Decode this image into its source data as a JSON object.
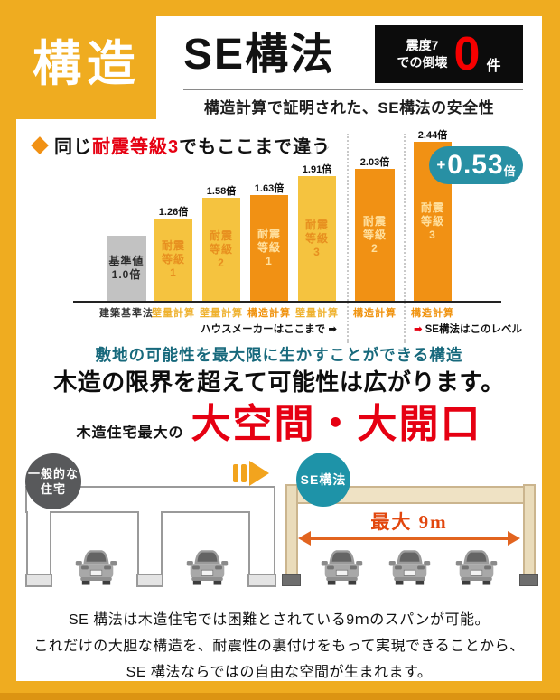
{
  "badge": {
    "label": "構造"
  },
  "header": {
    "title": "SE構法",
    "stat": {
      "line1": "震度7",
      "line2": "での倒壊",
      "number": "0",
      "unit": "件"
    },
    "subtitle": "構造計算で証明された、SE構法の安全性"
  },
  "chart": {
    "heading": {
      "pre": "同じ",
      "red": "耐震等級3",
      "post": "でもここまで違う"
    },
    "sparkle": "＼｜／",
    "pill": {
      "plus": "+",
      "number": "0.53",
      "unit": "倍"
    },
    "annotations": {
      "left": "ハウスメーカーはここまで ➡",
      "right_arrow": "➡",
      "right": "SE構法はこのレベル"
    }
  },
  "chart_data": {
    "type": "bar",
    "title": "同じ耐震等級3でもここまで違う",
    "categories": [
      "建築基準法",
      "壁量計算",
      "壁量計算",
      "構造計算",
      "壁量計算",
      "構造計算",
      "構造計算"
    ],
    "values": [
      1.0,
      1.26,
      1.58,
      1.63,
      1.91,
      2.03,
      2.44
    ],
    "ylim": [
      0,
      2.6
    ],
    "grid": false,
    "legend": "none",
    "annotations": [
      "ハウスメーカーはここまで ➡",
      "➡ SE構法はこのレベル",
      "+0.53倍"
    ],
    "bars": [
      {
        "value": 1.0,
        "value_label": "",
        "inner_lines": [
          "基準値",
          "1.0倍"
        ],
        "color": "#C2C2C2",
        "text_color": "#2b2b2b",
        "axis_label": "建築基準法",
        "axis_color": "#333333"
      },
      {
        "value": 1.26,
        "value_label": "1.26倍",
        "inner_lines": [
          "耐震",
          "等級",
          "1"
        ],
        "color": "#F5C33F",
        "text_color": "#E78F1F",
        "axis_label": "壁量計算",
        "axis_color": "#EFB22F"
      },
      {
        "value": 1.58,
        "value_label": "1.58倍",
        "inner_lines": [
          "耐震",
          "等級",
          "2"
        ],
        "color": "#F5C33F",
        "text_color": "#E78F1F",
        "axis_label": "壁量計算",
        "axis_color": "#EFB22F"
      },
      {
        "value": 1.63,
        "value_label": "1.63倍",
        "inner_lines": [
          "耐震",
          "等級",
          "1"
        ],
        "color": "#F19114",
        "text_color": "#FFE09E",
        "axis_label": "構造計算",
        "axis_color": "#F0920C"
      },
      {
        "value": 1.91,
        "value_label": "1.91倍",
        "inner_lines": [
          "耐震",
          "等級",
          "3"
        ],
        "color": "#F5C33F",
        "text_color": "#E78F1F",
        "axis_label": "壁量計算",
        "axis_color": "#EFB22F"
      },
      {
        "value": 2.03,
        "value_label": "2.03倍",
        "inner_lines": [
          "耐震",
          "等級",
          "2"
        ],
        "color": "#F19114",
        "text_color": "#FFE09E",
        "axis_label": "構造計算",
        "axis_color": "#F0920C"
      },
      {
        "value": 2.44,
        "value_label": "2.44倍",
        "inner_lines": [
          "耐震",
          "等級",
          "3"
        ],
        "color": "#F19114",
        "text_color": "#FFE09E",
        "axis_label": "構造計算",
        "axis_color": "#F0920C"
      }
    ]
  },
  "sections": {
    "teal_heading": "敷地の可能性を最大限に生かすことができる構造",
    "black_heading": "木造の限界を超えて可能性は広がります。",
    "big_prefix": "木造住宅最大の",
    "big_red": "大空間・大開口"
  },
  "diagram": {
    "left": {
      "label_line1": "一般的な",
      "label_line2": "住宅",
      "cars": 2
    },
    "right": {
      "label": "SE構法",
      "span_label": "最大 9m",
      "cars": 3
    }
  },
  "footer": {
    "line1": "SE 構法は木造住宅では困難とされている9ｍのスパンが可能。",
    "line2": "これだけの大胆な構造を、耐震性の裏付けをもって実現できることから、",
    "line3": "SE 構法ならではの自由な空間が生まれます。"
  },
  "colors": {
    "background": "#EFAC20",
    "bar_gray": "#C2C2C2",
    "bar_yellow": "#F5C33F",
    "bar_orange": "#F19114",
    "teal": "#1E93A8",
    "red": "#E60012",
    "bottom_strip": "#DC9412"
  }
}
